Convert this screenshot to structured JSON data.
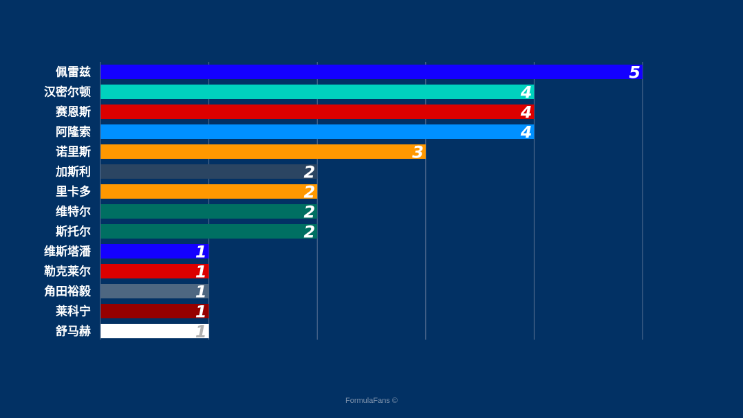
{
  "chart_data": {
    "type": "bar",
    "orientation": "horizontal",
    "categories": [
      "佩雷兹",
      "汉密尔顿",
      "赛恩斯",
      "阿隆索",
      "诺里斯",
      "加斯利",
      "里卡多",
      "维特尔",
      "斯托尔",
      "维斯塔潘",
      "勒克莱尔",
      "角田裕毅",
      "莱科宁",
      "舒马赫"
    ],
    "values": [
      5,
      4,
      4,
      4,
      3,
      2,
      2,
      2,
      2,
      1,
      1,
      1,
      1,
      1
    ],
    "colors": [
      "#1400ff",
      "#00d2be",
      "#dc0000",
      "#0090ff",
      "#ff9800",
      "#2b4562",
      "#ff9800",
      "#006f62",
      "#006f62",
      "#1400ff",
      "#dc0000",
      "#4e6781",
      "#960000",
      "#ffffff"
    ],
    "label_colors": [
      "#ffffff",
      "#ffffff",
      "#ffffff",
      "#ffffff",
      "#ffffff",
      "#ffffff",
      "#ffffff",
      "#ffffff",
      "#ffffff",
      "#ffffff",
      "#ffffff",
      "#ffffff",
      "#ffffff",
      "#b0b0b0"
    ],
    "xlim": [
      0,
      5
    ],
    "grid": true,
    "background": "#023164",
    "gridline_color": "#5b7294"
  },
  "credit": "FormulaFans"
}
